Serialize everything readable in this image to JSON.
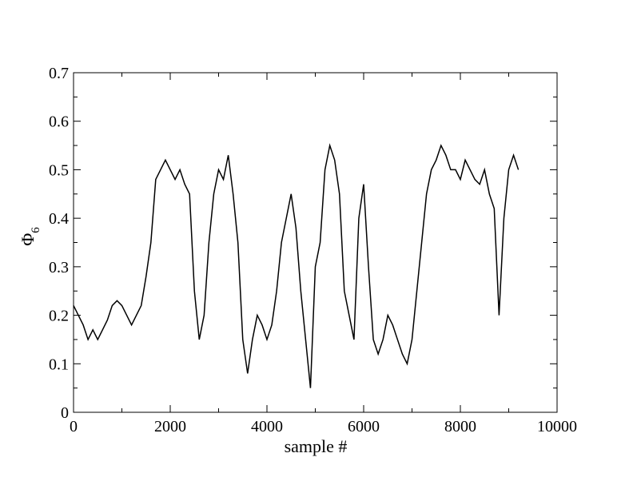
{
  "chart_data": {
    "type": "line",
    "title": "",
    "xlabel": "sample #",
    "ylabel": "Φ",
    "ylabel_subscript": "6",
    "xlim": [
      0,
      10000
    ],
    "ylim": [
      0,
      0.7
    ],
    "xticks": [
      0,
      2000,
      4000,
      6000,
      8000,
      10000
    ],
    "xtick_labels": [
      "0",
      "2000",
      "4000",
      "6000",
      "8000",
      "10000"
    ],
    "yticks": [
      0,
      0.1,
      0.2,
      0.3,
      0.4,
      0.5,
      0.6,
      0.7
    ],
    "ytick_labels": [
      "0",
      "0.1",
      "0.2",
      "0.3",
      "0.4",
      "0.5",
      "0.6",
      "0.7"
    ],
    "grid": false,
    "legend": "none",
    "line_color": "#000000",
    "series": [
      {
        "x": [
          0,
          100,
          200,
          300,
          400,
          500,
          600,
          700,
          800,
          900,
          1000,
          1100,
          1200,
          1300,
          1400,
          1500,
          1600,
          1700,
          1800,
          1900,
          2000,
          2100,
          2200,
          2300,
          2400,
          2500,
          2600,
          2700,
          2800,
          2900,
          3000,
          3100,
          3200,
          3300,
          3400,
          3500,
          3600,
          3700,
          3800,
          3900,
          4000,
          4100,
          4200,
          4300,
          4400,
          4500,
          4600,
          4700,
          4800,
          4900,
          5000,
          5100,
          5200,
          5300,
          5400,
          5500,
          5600,
          5700,
          5800,
          5900,
          6000,
          6100,
          6200,
          6300,
          6400,
          6500,
          6600,
          6700,
          6800,
          6900,
          7000,
          7100,
          7200,
          7300,
          7400,
          7500,
          7600,
          7700,
          7800,
          7900,
          8000,
          8100,
          8200,
          8300,
          8400,
          8500,
          8600,
          8700,
          8800,
          8900,
          9000,
          9100,
          9200
        ],
        "values": [
          0.22,
          0.2,
          0.18,
          0.15,
          0.17,
          0.15,
          0.17,
          0.19,
          0.22,
          0.23,
          0.22,
          0.2,
          0.18,
          0.2,
          0.22,
          0.28,
          0.35,
          0.48,
          0.5,
          0.52,
          0.5,
          0.48,
          0.5,
          0.47,
          0.45,
          0.25,
          0.15,
          0.2,
          0.35,
          0.45,
          0.5,
          0.48,
          0.53,
          0.45,
          0.35,
          0.15,
          0.08,
          0.15,
          0.2,
          0.18,
          0.15,
          0.18,
          0.25,
          0.35,
          0.4,
          0.45,
          0.38,
          0.25,
          0.15,
          0.05,
          0.3,
          0.35,
          0.5,
          0.55,
          0.52,
          0.45,
          0.25,
          0.2,
          0.15,
          0.4,
          0.47,
          0.3,
          0.15,
          0.12,
          0.15,
          0.2,
          0.18,
          0.15,
          0.12,
          0.1,
          0.15,
          0.25,
          0.35,
          0.45,
          0.5,
          0.52,
          0.55,
          0.53,
          0.5,
          0.5,
          0.48,
          0.52,
          0.5,
          0.48,
          0.47,
          0.5,
          0.45,
          0.42,
          0.2,
          0.4,
          0.5,
          0.53,
          0.5
        ]
      }
    ]
  }
}
